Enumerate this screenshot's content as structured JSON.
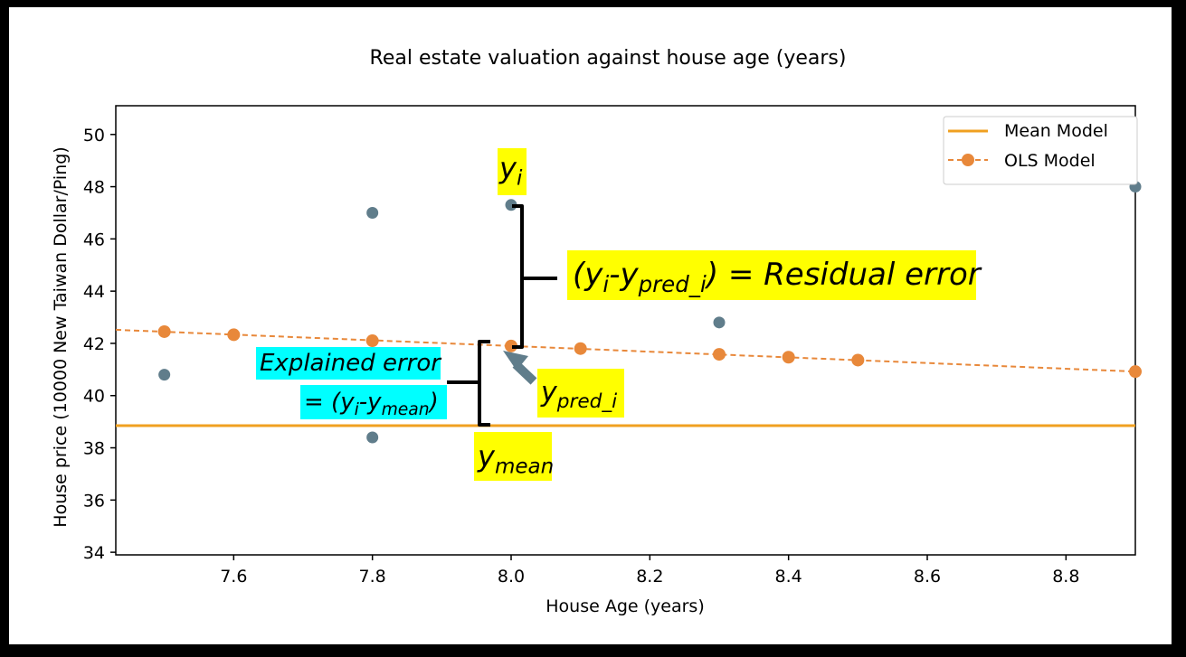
{
  "chart_data": {
    "type": "scatter",
    "title": "Real estate valuation against house age (years)",
    "xlabel": "House Age (years)",
    "ylabel": "House price (10000 New Taiwan Dollar/Ping)",
    "xlim": [
      7.43,
      8.9
    ],
    "ylim": [
      33.9,
      51.1
    ],
    "xticks": [
      "7.6",
      "7.8",
      "8.0",
      "8.2",
      "8.4",
      "8.6",
      "8.8"
    ],
    "yticks": [
      "34",
      "36",
      "38",
      "40",
      "42",
      "44",
      "46",
      "48",
      "50"
    ],
    "grid": false,
    "legend": "top-right",
    "points": {
      "color": "#607d8b",
      "x": [
        7.5,
        7.8,
        7.8,
        8.0,
        8.3,
        8.9
      ],
      "y": [
        40.8,
        47.0,
        38.4,
        47.3,
        42.8,
        48.0
      ]
    },
    "series": [
      {
        "name": "Mean Model",
        "style": "solid",
        "color": "#f0a020",
        "x": [
          7.43,
          8.9
        ],
        "y": [
          38.85,
          38.85
        ]
      },
      {
        "name": "OLS Model",
        "style": "dashed-markers",
        "color": "#e8883a",
        "x": [
          7.5,
          7.6,
          7.8,
          8.0,
          8.1,
          8.3,
          8.4,
          8.5,
          8.9
        ],
        "y": [
          42.45,
          42.33,
          42.1,
          41.9,
          41.8,
          41.58,
          41.47,
          41.36,
          40.92
        ]
      }
    ],
    "ols_line": {
      "x": [
        7.43,
        8.9
      ],
      "y": [
        42.52,
        40.92
      ]
    },
    "annotations": {
      "residual_text": "(yᵢ-y",
      "residual_sub": "pred_i",
      "residual_rest": ") = Residual error",
      "explained_line1": "Explained error",
      "explained_pre": "= (y",
      "explained_i": "i",
      "explained_mid": "-y",
      "explained_sub": "mean",
      "explained_post": ")",
      "yi_base": "y",
      "yi_sub": "i",
      "ypred_base": "y",
      "ypred_sub": "pred_i",
      "ymean_base": "y",
      "ymean_sub": "mean"
    }
  }
}
